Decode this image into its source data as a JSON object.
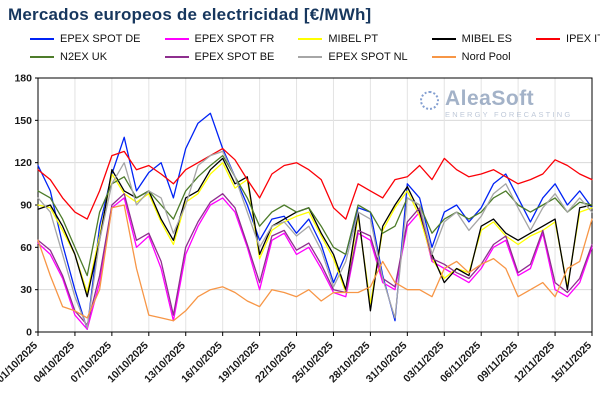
{
  "watermark": {
    "brand": "AleaSoft",
    "tagline": "ENERGY FORECASTING"
  },
  "chart_data": {
    "type": "line",
    "title": "Mercados europeos de electricidad [€/MWh]",
    "xlabel": "",
    "ylabel": "",
    "ylim": [
      0,
      180
    ],
    "yticks": [
      0,
      30,
      60,
      90,
      120,
      150,
      180
    ],
    "x_tick_step": 3,
    "grid": true,
    "legend_position": "top",
    "dates": [
      "01/10/2025",
      "02/10/2025",
      "03/10/2025",
      "04/10/2025",
      "05/10/2025",
      "06/10/2025",
      "07/10/2025",
      "08/10/2025",
      "09/10/2025",
      "10/10/2025",
      "11/10/2025",
      "12/10/2025",
      "13/10/2025",
      "14/10/2025",
      "15/10/2025",
      "16/10/2025",
      "17/10/2025",
      "18/10/2025",
      "19/10/2025",
      "20/10/2025",
      "21/10/2025",
      "22/10/2025",
      "23/10/2025",
      "24/10/2025",
      "25/10/2025",
      "26/10/2025",
      "27/10/2025",
      "28/10/2025",
      "29/10/2025",
      "30/10/2025",
      "31/10/2025",
      "01/11/2025",
      "02/11/2025",
      "03/11/2025",
      "04/11/2025",
      "05/11/2025",
      "06/11/2025",
      "07/11/2025",
      "08/11/2025",
      "09/11/2025",
      "10/11/2025",
      "11/11/2025",
      "12/11/2025",
      "13/11/2025",
      "14/11/2025",
      "15/11/2025"
    ],
    "series": [
      {
        "name": "EPEX SPOT DE",
        "color": "#0023f5",
        "values": [
          118,
          100,
          62,
          30,
          2,
          75,
          112,
          138,
          100,
          113,
          120,
          95,
          130,
          148,
          155,
          130,
          110,
          90,
          65,
          80,
          82,
          70,
          80,
          62,
          35,
          55,
          88,
          85,
          40,
          8,
          105,
          95,
          60,
          85,
          90,
          78,
          88,
          105,
          112,
          95,
          78,
          95,
          105,
          90,
          100,
          88
        ]
      },
      {
        "name": "EPEX SPOT FR",
        "color": "#ff00ff",
        "values": [
          63,
          55,
          38,
          12,
          2,
          35,
          88,
          95,
          60,
          68,
          45,
          8,
          55,
          75,
          90,
          95,
          85,
          60,
          30,
          65,
          70,
          55,
          60,
          45,
          28,
          25,
          70,
          65,
          35,
          30,
          75,
          85,
          50,
          45,
          40,
          35,
          45,
          60,
          65,
          40,
          45,
          70,
          30,
          25,
          35,
          60
        ]
      },
      {
        "name": "MIBEL PT",
        "color": "#ffff00",
        "values": [
          90,
          88,
          72,
          55,
          28,
          68,
          112,
          98,
          92,
          98,
          78,
          62,
          92,
          98,
          112,
          120,
          102,
          108,
          52,
          72,
          78,
          82,
          85,
          68,
          52,
          28,
          82,
          20,
          72,
          88,
          100,
          82,
          52,
          38,
          45,
          42,
          72,
          78,
          68,
          62,
          68,
          72,
          78,
          32,
          85,
          88
        ]
      },
      {
        "name": "MIBEL ES",
        "color": "#000000",
        "values": [
          87,
          90,
          75,
          55,
          25,
          65,
          115,
          100,
          95,
          100,
          80,
          65,
          95,
          100,
          115,
          123,
          105,
          110,
          55,
          75,
          80,
          85,
          88,
          70,
          55,
          30,
          85,
          15,
          75,
          90,
          103,
          85,
          55,
          35,
          45,
          40,
          75,
          80,
          70,
          65,
          70,
          75,
          80,
          30,
          88,
          90
        ]
      },
      {
        "name": "IPEX IT",
        "color": "#fb0007",
        "values": [
          115,
          108,
          95,
          85,
          80,
          100,
          125,
          128,
          115,
          118,
          112,
          105,
          115,
          120,
          125,
          130,
          122,
          108,
          95,
          112,
          118,
          120,
          115,
          108,
          88,
          80,
          105,
          100,
          95,
          108,
          110,
          118,
          108,
          123,
          115,
          110,
          112,
          115,
          110,
          105,
          108,
          112,
          122,
          118,
          112,
          108
        ]
      },
      {
        "name": "N2EX UK",
        "color": "#4d7c2a",
        "values": [
          100,
          95,
          80,
          60,
          40,
          85,
          105,
          110,
          95,
          100,
          90,
          80,
          100,
          110,
          118,
          125,
          110,
          95,
          75,
          85,
          90,
          85,
          88,
          75,
          60,
          55,
          90,
          85,
          70,
          75,
          95,
          90,
          70,
          80,
          85,
          80,
          85,
          95,
          100,
          90,
          85,
          90,
          95,
          85,
          92,
          90
        ]
      },
      {
        "name": "EPEX SPOT BE",
        "color": "#8e2f8e",
        "values": [
          65,
          58,
          40,
          15,
          5,
          40,
          90,
          98,
          65,
          70,
          50,
          12,
          60,
          78,
          92,
          98,
          88,
          62,
          35,
          68,
          72,
          58,
          63,
          48,
          30,
          28,
          72,
          68,
          38,
          32,
          78,
          88,
          52,
          48,
          42,
          38,
          48,
          62,
          68,
          42,
          48,
          72,
          35,
          28,
          38,
          62
        ]
      },
      {
        "name": "EPEX SPOT NL",
        "color": "#a6a6a6",
        "values": [
          95,
          85,
          55,
          25,
          3,
          65,
          105,
          120,
          90,
          100,
          95,
          70,
          90,
          118,
          125,
          128,
          110,
          85,
          60,
          75,
          78,
          68,
          75,
          58,
          32,
          50,
          85,
          80,
          38,
          10,
          95,
          90,
          55,
          78,
          85,
          72,
          82,
          98,
          105,
          88,
          72,
          88,
          98,
          85,
          95,
          85
        ]
      },
      {
        "name": "Nord Pool",
        "color": "#f79646",
        "values": [
          65,
          40,
          18,
          15,
          10,
          30,
          88,
          90,
          45,
          12,
          10,
          8,
          15,
          25,
          30,
          32,
          28,
          22,
          18,
          30,
          28,
          25,
          30,
          22,
          28,
          28,
          28,
          32,
          50,
          35,
          30,
          30,
          25,
          45,
          50,
          42,
          48,
          52,
          45,
          25,
          30,
          35,
          25,
          45,
          50,
          80
        ]
      }
    ]
  }
}
